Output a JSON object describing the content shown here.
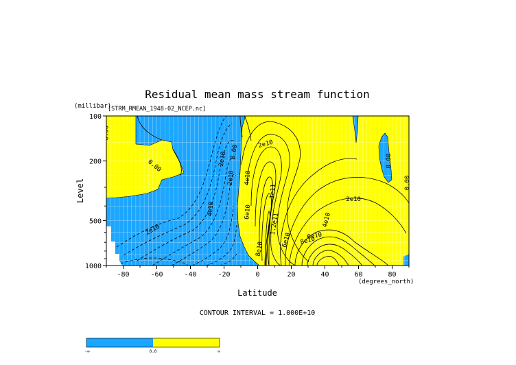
{
  "chart_data": {
    "type": "contour",
    "title": "Residual mean mass stream function",
    "subtitle": "[STRM_RMEAN_1948-02_NCEP.nc]",
    "xlabel": "Latitude",
    "x_units": "(degrees_north)",
    "ylabel": "Level",
    "y_units": "(millibar)",
    "xlim": [
      -90,
      90
    ],
    "ylim": [
      1000,
      100
    ],
    "y_scale": "log",
    "x_ticks": [
      -80,
      -60,
      -40,
      -20,
      0,
      20,
      40,
      60,
      80
    ],
    "y_ticks": [
      100,
      200,
      500,
      1000
    ],
    "contour_interval_text": "CONTOUR INTERVAL = 1.000E+10",
    "fill_colors": {
      "negative": "#1ba6ff",
      "positive": "#ffff00"
    },
    "contour_labels": [
      {
        "text": "0.00",
        "x": -89,
        "y": 130,
        "rot": -90
      },
      {
        "text": "0.00",
        "x": -62,
        "y": 220,
        "rot": 40
      },
      {
        "text": "2e10",
        "x": -20,
        "y": 195,
        "rot": -80
      },
      {
        "text": "0.00",
        "x": -13,
        "y": 175,
        "rot": -80
      },
      {
        "text": "2e10",
        "x": -15,
        "y": 260,
        "rot": -85
      },
      {
        "text": "4e10",
        "x": -5,
        "y": 260,
        "rot": -85
      },
      {
        "text": "4e10",
        "x": -27,
        "y": 420,
        "rot": -85
      },
      {
        "text": "2e10",
        "x": -62,
        "y": 590,
        "rot": -30
      },
      {
        "text": "2e10",
        "x": 5,
        "y": 158,
        "rot": -15
      },
      {
        "text": "1e11",
        "x": 10,
        "y": 320,
        "rot": -85
      },
      {
        "text": "6e10",
        "x": -5,
        "y": 440,
        "rot": -85
      },
      {
        "text": "1.2e11",
        "x": 11,
        "y": 530,
        "rot": -80
      },
      {
        "text": "8e10",
        "x": 2,
        "y": 780,
        "rot": -80
      },
      {
        "text": "6e10",
        "x": 18,
        "y": 680,
        "rot": -75
      },
      {
        "text": "8e10",
        "x": 30,
        "y": 700,
        "rot": -15
      },
      {
        "text": "6e10",
        "x": 34,
        "y": 650,
        "rot": -10
      },
      {
        "text": "4e10",
        "x": 42,
        "y": 500,
        "rot": -75
      },
      {
        "text": "2e10",
        "x": 57,
        "y": 370,
        "rot": 0
      },
      {
        "text": "0.00",
        "x": 79,
        "y": 200,
        "rot": -90
      },
      {
        "text": "0.00",
        "x": 90,
        "y": 280,
        "rot": -90
      }
    ]
  },
  "colorbar": {
    "labels": [
      "-∞",
      "0.0",
      "∞"
    ]
  }
}
